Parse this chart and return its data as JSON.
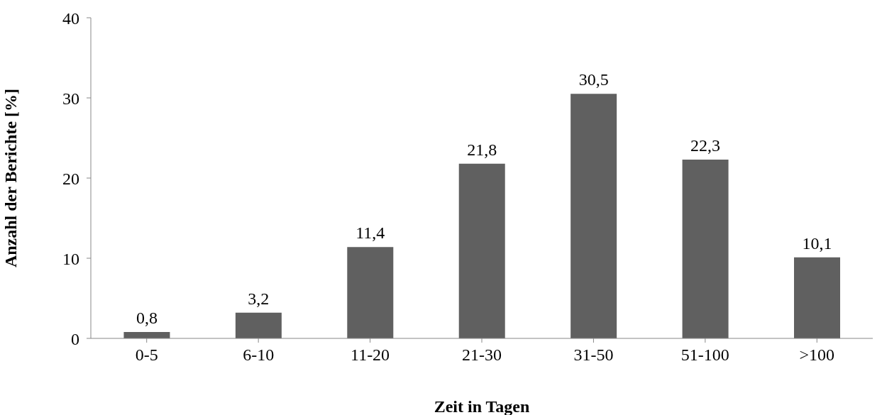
{
  "chart_data": {
    "type": "bar",
    "xlabel": "Zeit in Tagen",
    "ylabel": "Anzahl der Berichte  [%]",
    "categories": [
      "0-5",
      "6-10",
      "11-20",
      "21-30",
      "31-50",
      "51-100",
      ">100"
    ],
    "values": [
      0.8,
      3.2,
      11.4,
      21.8,
      30.5,
      22.3,
      10.1
    ],
    "value_labels": [
      "0,8",
      "3,2",
      "11,4",
      "21,8",
      "30,5",
      "22,3",
      "10,1"
    ],
    "color": "#606060",
    "ylim": [
      0,
      40
    ],
    "yticks": [
      0,
      10,
      20,
      30,
      40
    ],
    "grid": false,
    "legend": false
  }
}
